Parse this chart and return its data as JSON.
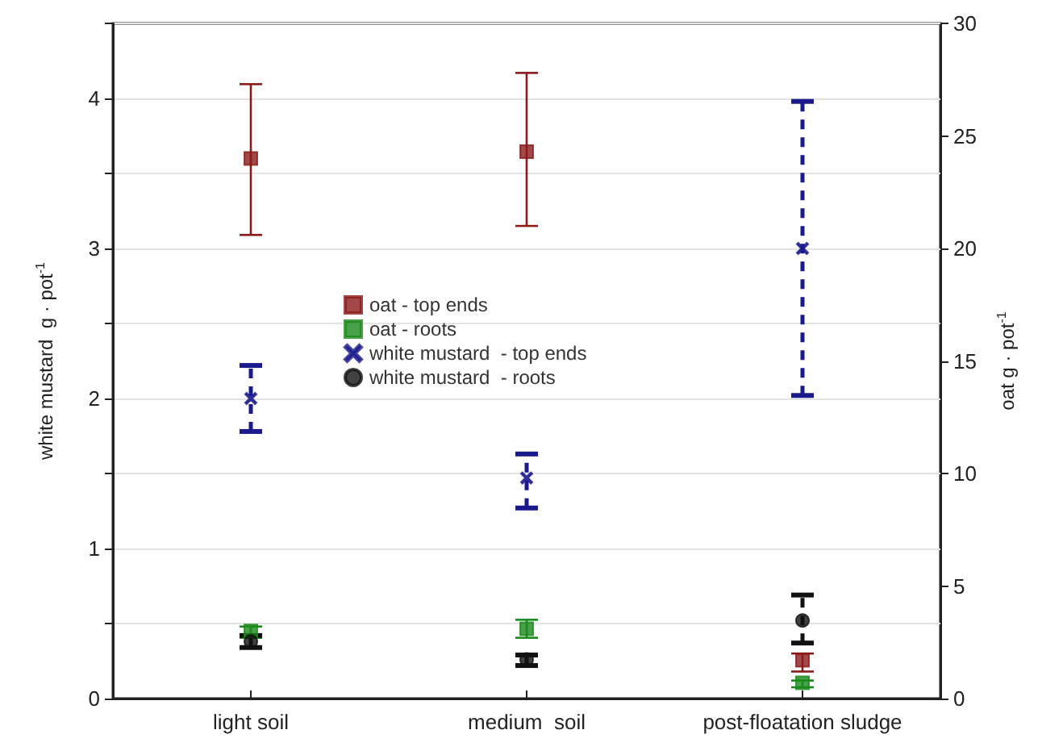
{
  "chart_data": {
    "type": "scatter",
    "categories": [
      "light soil",
      "medium  soil",
      "post-floatation sludge"
    ],
    "ylabel": "white mustard  g · pot$^{-1}$",
    "y2label": "oat g · pot$^{-1}$",
    "ylim": [
      0,
      4.5
    ],
    "yticks": [
      0,
      {
        "value": 0.5,
        "label": null
      },
      1,
      {
        "value": 1.5,
        "label": null
      },
      2,
      {
        "value": 2.5,
        "label": null
      },
      3,
      {
        "value": 3.5,
        "label": null
      },
      4,
      {
        "value": 4.5,
        "label": null
      }
    ],
    "y2lim": [
      0,
      30
    ],
    "y2ticks": [
      0,
      5,
      10,
      15,
      20,
      25,
      30
    ],
    "grid": "y",
    "legend": "center",
    "series": [
      {
        "name": "oat - top ends",
        "color": "#8b1a1a",
        "axis": "y2",
        "marker": "square",
        "line_style": "solid",
        "values": [
          24.0,
          24.3,
          1.7
        ],
        "errors": [
          [
            20.6,
            27.3
          ],
          [
            21.0,
            27.8
          ],
          [
            1.2,
            2.0
          ]
        ]
      },
      {
        "name": "oat - roots",
        "color": "#1a8a1a",
        "axis": "y2",
        "marker": "square",
        "line_style": "solid",
        "values": [
          3.0,
          3.1,
          0.7
        ],
        "errors": [
          [
            2.7,
            3.2
          ],
          [
            2.7,
            3.5
          ],
          [
            0.5,
            0.8
          ]
        ]
      },
      {
        "name": "white mustard  - top ends",
        "color": "#1a1a8c",
        "axis": "y",
        "marker": "cross",
        "line_style": "dashed",
        "values": [
          2.0,
          1.47,
          3.0
        ],
        "errors": [
          [
            1.78,
            2.22
          ],
          [
            1.27,
            1.63
          ],
          [
            2.02,
            3.98
          ]
        ]
      },
      {
        "name": "white mustard  - roots",
        "color": "#111111",
        "axis": "y",
        "marker": "circle",
        "line_style": "dashed",
        "values": [
          0.38,
          0.26,
          0.52
        ],
        "errors": [
          [
            0.34,
            0.42
          ],
          [
            0.22,
            0.29
          ],
          [
            0.37,
            0.69
          ]
        ]
      }
    ]
  }
}
